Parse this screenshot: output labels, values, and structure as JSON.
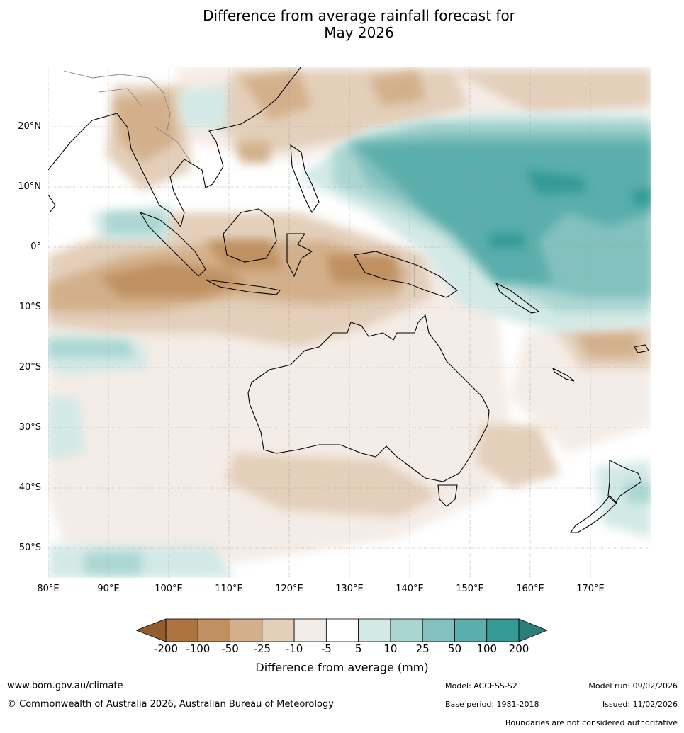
{
  "title": {
    "line1": "Difference from average rainfall forecast for",
    "line2": "May 2026"
  },
  "map": {
    "lat_labels": [
      "20°N",
      "10°N",
      "0°",
      "10°S",
      "20°S",
      "30°S",
      "40°S",
      "50°S"
    ],
    "lon_labels": [
      "80°E",
      "90°E",
      "100°E",
      "110°E",
      "120°E",
      "130°E",
      "140°E",
      "150°E",
      "160°E",
      "170°E"
    ]
  },
  "colorbar": {
    "ticks": [
      "-200",
      "-100",
      "-50",
      "-25",
      "-10",
      "-5",
      "5",
      "10",
      "25",
      "50",
      "100",
      "200"
    ],
    "colors": [
      "#ad7440",
      "#c09060",
      "#d3b08b",
      "#e3cfba",
      "#f4ece6",
      "#ffffff",
      "#d3e9e6",
      "#aad6d2",
      "#83c1be",
      "#5aaeab",
      "#339a96"
    ],
    "under_color": "#935d2e",
    "over_color": "#2b7f7b",
    "label": "Difference from average (mm)"
  },
  "footer": {
    "website": "www.bom.gov.au/climate",
    "copyright": "© Commonwealth of Australia 2026, Australian Bureau of Meteorology",
    "model": "Model: ACCESS-S2",
    "base_period": "Base period: 1981-2018",
    "model_run": "Model run: 09/02/2026",
    "issued": "Issued: 11/02/2026",
    "disclaimer": "Boundaries are not considered authoritative"
  }
}
